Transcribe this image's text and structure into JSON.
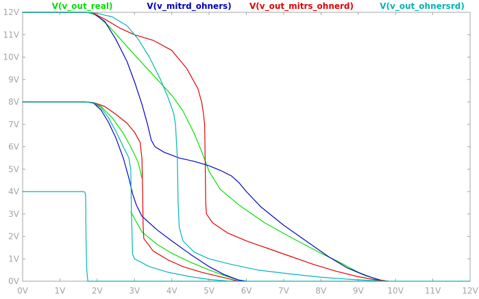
{
  "chart_data": {
    "type": "line",
    "title": "",
    "xlabel": "",
    "ylabel": "",
    "xlim": [
      0,
      12
    ],
    "ylim": [
      0,
      12
    ],
    "x_ticks": [
      0,
      1,
      2,
      3,
      4,
      5,
      6,
      7,
      8,
      9,
      10,
      11,
      12
    ],
    "y_ticks": [
      0,
      1,
      2,
      3,
      4,
      5,
      6,
      7,
      8,
      9,
      10,
      11,
      12
    ],
    "x_tick_labels": [
      "0V",
      "1V",
      "2V",
      "3V",
      "4V",
      "5V",
      "6V",
      "7V",
      "8V",
      "9V",
      "10V",
      "11V",
      "12V"
    ],
    "y_tick_labels": [
      "0V",
      "1V",
      "2V",
      "3V",
      "4V",
      "5V",
      "6V",
      "7V",
      "8V",
      "9V",
      "10V",
      "11V",
      "12V"
    ],
    "grid": false,
    "legend_position": "top",
    "series": [
      {
        "name": "V(v_out_real)",
        "color": "#00e000",
        "segments": [
          [
            [
              0,
              12
            ],
            [
              1.7,
              12
            ],
            [
              1.8,
              11.98
            ],
            [
              2.0,
              11.85
            ],
            [
              2.3,
              11.4
            ],
            [
              2.6,
              10.85
            ],
            [
              3.0,
              10.1
            ],
            [
              3.5,
              9.2
            ],
            [
              4.0,
              8.3
            ],
            [
              4.3,
              7.6
            ],
            [
              4.6,
              6.6
            ],
            [
              4.8,
              5.8
            ],
            [
              5.0,
              4.9
            ],
            [
              5.3,
              4.1
            ],
            [
              5.8,
              3.4
            ],
            [
              6.5,
              2.6
            ],
            [
              7.2,
              1.95
            ],
            [
              8.0,
              1.25
            ],
            [
              8.5,
              0.85
            ],
            [
              9.0,
              0.4
            ],
            [
              9.5,
              0.08
            ],
            [
              9.7,
              0
            ]
          ],
          [
            [
              0,
              8
            ],
            [
              1.7,
              8
            ],
            [
              1.85,
              7.98
            ],
            [
              2.1,
              7.8
            ],
            [
              2.4,
              7.3
            ],
            [
              2.7,
              6.6
            ],
            [
              2.9,
              6.0
            ],
            [
              3.1,
              5.3
            ],
            [
              3.2,
              4.6
            ]
          ],
          [
            [
              2.9,
              3.1
            ],
            [
              3.2,
              2.2
            ],
            [
              3.6,
              1.65
            ],
            [
              4.0,
              1.25
            ],
            [
              4.5,
              0.85
            ],
            [
              5.0,
              0.5
            ],
            [
              5.5,
              0.2
            ],
            [
              5.8,
              0.05
            ],
            [
              6.0,
              0
            ]
          ]
        ]
      },
      {
        "name": "V(v_mitrd_ohners)",
        "color": "#0000c0",
        "segments": [
          [
            [
              0,
              12
            ],
            [
              1.7,
              12
            ],
            [
              1.9,
              11.95
            ],
            [
              2.2,
              11.6
            ],
            [
              2.5,
              10.8
            ],
            [
              2.8,
              9.8
            ],
            [
              3.0,
              8.9
            ],
            [
              3.2,
              7.9
            ],
            [
              3.35,
              7.0
            ],
            [
              3.45,
              6.3
            ],
            [
              3.55,
              6.0
            ],
            [
              3.8,
              5.75
            ],
            [
              4.2,
              5.5
            ],
            [
              4.6,
              5.35
            ],
            [
              5.0,
              5.15
            ],
            [
              5.3,
              4.95
            ],
            [
              5.6,
              4.7
            ],
            [
              5.8,
              4.4
            ],
            [
              6.0,
              4.0
            ],
            [
              6.4,
              3.3
            ],
            [
              7.0,
              2.5
            ],
            [
              7.6,
              1.8
            ],
            [
              8.2,
              1.1
            ],
            [
              8.7,
              0.6
            ],
            [
              9.2,
              0.25
            ],
            [
              9.6,
              0.05
            ],
            [
              9.8,
              0
            ]
          ],
          [
            [
              0,
              8
            ],
            [
              1.7,
              8
            ],
            [
              1.9,
              7.95
            ],
            [
              2.1,
              7.65
            ],
            [
              2.3,
              7.1
            ],
            [
              2.5,
              6.4
            ],
            [
              2.7,
              5.5
            ],
            [
              2.85,
              4.6
            ],
            [
              2.95,
              3.9
            ],
            [
              3.05,
              3.4
            ],
            [
              3.2,
              2.9
            ],
            [
              3.6,
              2.3
            ],
            [
              4.0,
              1.8
            ],
            [
              4.5,
              1.2
            ],
            [
              5.0,
              0.65
            ],
            [
              5.4,
              0.3
            ],
            [
              5.8,
              0.05
            ],
            [
              6.0,
              0
            ]
          ]
        ]
      },
      {
        "name": "V(v_out_mitrs_ohnerd)",
        "color": "#e00000",
        "segments": [
          [
            [
              0,
              12
            ],
            [
              1.7,
              12
            ],
            [
              1.9,
              11.95
            ],
            [
              2.2,
              11.7
            ],
            [
              2.6,
              11.3
            ],
            [
              3.0,
              11.0
            ],
            [
              3.5,
              10.75
            ],
            [
              4.0,
              10.3
            ],
            [
              4.4,
              9.5
            ],
            [
              4.7,
              8.6
            ],
            [
              4.8,
              8.0
            ],
            [
              4.85,
              7.5
            ],
            [
              4.88,
              7.0
            ],
            [
              4.9,
              5.0
            ],
            [
              4.91,
              3.5
            ],
            [
              4.93,
              3.0
            ],
            [
              5.1,
              2.6
            ],
            [
              5.5,
              2.15
            ],
            [
              6.0,
              1.8
            ],
            [
              6.6,
              1.45
            ],
            [
              7.2,
              1.1
            ],
            [
              7.8,
              0.75
            ],
            [
              8.4,
              0.45
            ],
            [
              9.0,
              0.2
            ],
            [
              9.5,
              0.05
            ],
            [
              9.8,
              0
            ]
          ],
          [
            [
              0,
              8
            ],
            [
              1.7,
              8
            ],
            [
              1.9,
              7.97
            ],
            [
              2.2,
              7.8
            ],
            [
              2.5,
              7.45
            ],
            [
              2.8,
              7.05
            ],
            [
              3.0,
              6.65
            ],
            [
              3.15,
              6.2
            ],
            [
              3.2,
              5.5
            ],
            [
              3.22,
              4.0
            ],
            [
              3.23,
              2.5
            ],
            [
              3.25,
              1.9
            ],
            [
              3.5,
              1.35
            ],
            [
              3.9,
              0.95
            ],
            [
              4.3,
              0.65
            ],
            [
              4.8,
              0.4
            ],
            [
              5.3,
              0.2
            ],
            [
              5.6,
              0.08
            ],
            [
              5.8,
              0
            ]
          ]
        ]
      },
      {
        "name": "V(v_out_ohnersrd)",
        "color": "#00b4b4",
        "segments": [
          [
            [
              0,
              12
            ],
            [
              1.7,
              12
            ],
            [
              2.0,
              11.95
            ],
            [
              2.4,
              11.8
            ],
            [
              2.8,
              11.4
            ],
            [
              3.1,
              10.8
            ],
            [
              3.4,
              10.0
            ],
            [
              3.7,
              9.0
            ],
            [
              3.9,
              8.2
            ],
            [
              4.05,
              7.5
            ],
            [
              4.1,
              7.0
            ],
            [
              4.15,
              5.5
            ],
            [
              4.17,
              3.5
            ],
            [
              4.2,
              2.4
            ],
            [
              4.3,
              1.8
            ],
            [
              4.6,
              1.3
            ],
            [
              5.0,
              1.0
            ],
            [
              5.6,
              0.75
            ],
            [
              6.3,
              0.5
            ],
            [
              7.2,
              0.32
            ],
            [
              8.0,
              0.18
            ],
            [
              8.8,
              0.08
            ],
            [
              9.5,
              0.02
            ],
            [
              9.7,
              0
            ]
          ],
          [
            [
              0,
              8
            ],
            [
              1.7,
              8
            ],
            [
              1.9,
              7.97
            ],
            [
              2.1,
              7.75
            ],
            [
              2.3,
              7.3
            ],
            [
              2.5,
              6.7
            ],
            [
              2.7,
              6.0
            ],
            [
              2.85,
              5.5
            ],
            [
              2.9,
              5.0
            ],
            [
              2.92,
              3.0
            ],
            [
              2.95,
              1.2
            ],
            [
              3.0,
              1.0
            ],
            [
              3.4,
              0.65
            ],
            [
              3.9,
              0.4
            ],
            [
              4.5,
              0.2
            ],
            [
              5.0,
              0.08
            ],
            [
              5.5,
              0.01
            ],
            [
              5.7,
              0
            ]
          ],
          [
            [
              0,
              4
            ],
            [
              1.6,
              4
            ],
            [
              1.67,
              3.98
            ],
            [
              1.69,
              3.8
            ],
            [
              1.7,
              2.0
            ],
            [
              1.72,
              0.5
            ],
            [
              1.75,
              0
            ],
            [
              12,
              0
            ]
          ]
        ]
      }
    ]
  }
}
